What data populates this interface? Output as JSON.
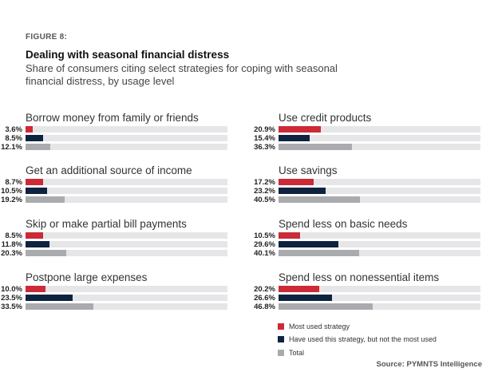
{
  "figure_label": "FIGURE 8:",
  "title": "Dealing with seasonal financial distress",
  "subtitle": "Share of consumers citing select strategies for coping with seasonal financial distress, by usage level",
  "source": "Source: PYMNTS Intelligence",
  "colors": {
    "most": "#cc2a36",
    "used": "#0d2340",
    "total": "#a9abae",
    "track": "#e6e6e8"
  },
  "chart_data": {
    "type": "bar",
    "title": "Dealing with seasonal financial distress",
    "xlim": [
      0,
      100
    ],
    "unit": "%",
    "series_names": [
      "Most used strategy",
      "Have used this strategy, but not the most used",
      "Total"
    ],
    "legend_position": "bottom-right",
    "groups": [
      {
        "name": "Borrow money from family or friends",
        "values": [
          3.6,
          8.5,
          12.1
        ],
        "labels": [
          "3.6%",
          "8.5%",
          "12.1%"
        ]
      },
      {
        "name": "Get an additional source of income",
        "values": [
          8.7,
          10.5,
          19.2
        ],
        "labels": [
          "8.7%",
          "10.5%",
          "19.2%"
        ]
      },
      {
        "name": "Skip or make partial bill payments",
        "values": [
          8.5,
          11.8,
          20.3
        ],
        "labels": [
          "8.5%",
          "11.8%",
          "20.3%"
        ]
      },
      {
        "name": "Postpone large expenses",
        "values": [
          10.0,
          23.5,
          33.5
        ],
        "labels": [
          "10.0%",
          "23.5%",
          "33.5%"
        ]
      },
      {
        "name": "Use credit products",
        "values": [
          20.9,
          15.4,
          36.3
        ],
        "labels": [
          "20.9%",
          "15.4%",
          "36.3%"
        ]
      },
      {
        "name": "Use savings",
        "values": [
          17.2,
          23.2,
          40.5
        ],
        "labels": [
          "17.2%",
          "23.2%",
          "40.5%"
        ]
      },
      {
        "name": "Spend less on basic needs",
        "values": [
          10.5,
          29.6,
          40.1
        ],
        "labels": [
          "10.5%",
          "29.6%",
          "40.1%"
        ]
      },
      {
        "name": "Spend less on nonessential items",
        "values": [
          20.2,
          26.6,
          46.8
        ],
        "labels": [
          "20.2%",
          "26.6%",
          "46.8%"
        ]
      }
    ]
  }
}
